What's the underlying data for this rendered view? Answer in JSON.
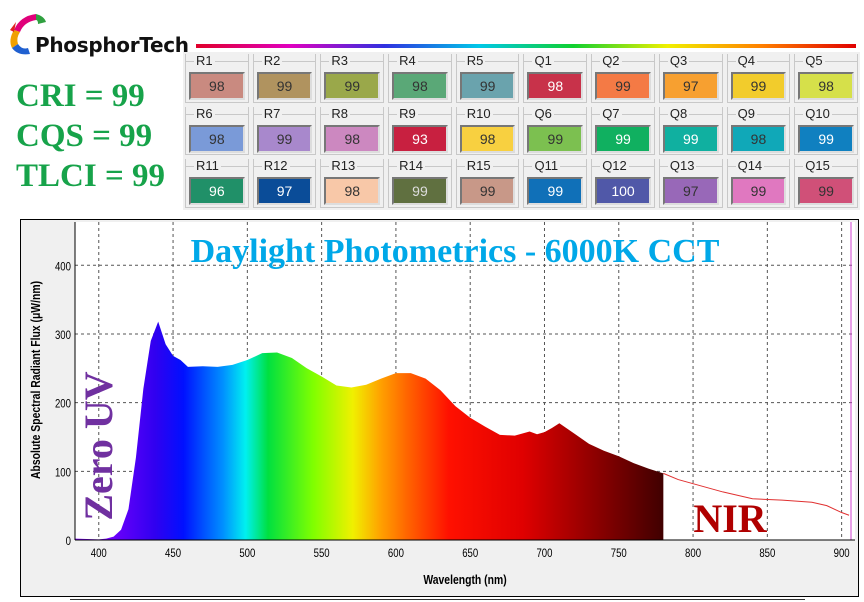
{
  "brand": {
    "name": "PhosphorTech"
  },
  "metrics": [
    {
      "label": "CRI = 99"
    },
    {
      "label": "CQS = 99"
    },
    {
      "label": "TLCI = 99"
    }
  ],
  "swatches": [
    {
      "id": "R1",
      "value": "98",
      "color": "#c98a80",
      "text": "#333"
    },
    {
      "id": "R2",
      "value": "99",
      "color": "#b0935f",
      "text": "#333"
    },
    {
      "id": "R3",
      "value": "99",
      "color": "#9aa84a",
      "text": "#333"
    },
    {
      "id": "R4",
      "value": "98",
      "color": "#5aa877",
      "text": "#333"
    },
    {
      "id": "R5",
      "value": "99",
      "color": "#6aa3ad",
      "text": "#333"
    },
    {
      "id": "Q1",
      "value": "98",
      "color": "#c8324a",
      "text": "#fff"
    },
    {
      "id": "Q2",
      "value": "99",
      "color": "#f47a45",
      "text": "#333"
    },
    {
      "id": "Q3",
      "value": "97",
      "color": "#f7a030",
      "text": "#333"
    },
    {
      "id": "Q4",
      "value": "99",
      "color": "#f2cc2c",
      "text": "#333"
    },
    {
      "id": "Q5",
      "value": "98",
      "color": "#d6e04a",
      "text": "#333"
    },
    {
      "id": "R6",
      "value": "98",
      "color": "#7a9ad8",
      "text": "#333"
    },
    {
      "id": "R7",
      "value": "99",
      "color": "#a888cc",
      "text": "#333"
    },
    {
      "id": "R8",
      "value": "98",
      "color": "#cc88c0",
      "text": "#333"
    },
    {
      "id": "R9",
      "value": "93",
      "color": "#c82040",
      "text": "#fff"
    },
    {
      "id": "R10",
      "value": "98",
      "color": "#f8d040",
      "text": "#333"
    },
    {
      "id": "Q6",
      "value": "99",
      "color": "#7cc050",
      "text": "#333"
    },
    {
      "id": "Q7",
      "value": "99",
      "color": "#10b060",
      "text": "#fff"
    },
    {
      "id": "Q8",
      "value": "99",
      "color": "#10b0a0",
      "text": "#fff"
    },
    {
      "id": "Q9",
      "value": "98",
      "color": "#10a8b8",
      "text": "#333"
    },
    {
      "id": "Q10",
      "value": "99",
      "color": "#1080c0",
      "text": "#fff"
    },
    {
      "id": "R11",
      "value": "96",
      "color": "#209068",
      "text": "#fff"
    },
    {
      "id": "R12",
      "value": "97",
      "color": "#0a4c98",
      "text": "#fff"
    },
    {
      "id": "R13",
      "value": "98",
      "color": "#f8c8a8",
      "text": "#333"
    },
    {
      "id": "R14",
      "value": "99",
      "color": "#607040",
      "text": "#ddd"
    },
    {
      "id": "R15",
      "value": "99",
      "color": "#c89888",
      "text": "#333"
    },
    {
      "id": "Q11",
      "value": "99",
      "color": "#1070b8",
      "text": "#fff"
    },
    {
      "id": "Q12",
      "value": "100",
      "color": "#5058a8",
      "text": "#fff"
    },
    {
      "id": "Q13",
      "value": "97",
      "color": "#9868b8",
      "text": "#333"
    },
    {
      "id": "Q14",
      "value": "99",
      "color": "#e078c0",
      "text": "#333"
    },
    {
      "id": "Q15",
      "value": "99",
      "color": "#d05078",
      "text": "#333"
    }
  ],
  "chart_data": {
    "type": "area",
    "title": "Daylight Photometrics - 6000K CCT",
    "xlabel": "Wavelength (nm)",
    "ylabel": "Absolute Spectral Radiant Flux (μW/nm)",
    "xlim": [
      384,
      909
    ],
    "ylim": [
      0,
      463
    ],
    "xticks": [
      400,
      450,
      500,
      550,
      600,
      650,
      700,
      750,
      800,
      850,
      900
    ],
    "yticks": [
      0,
      100,
      200,
      300,
      400
    ],
    "grid": true,
    "annotations": [
      {
        "text": "Zero UV",
        "color": "#7030a0"
      },
      {
        "text": "NIR",
        "color": "#b00000"
      }
    ],
    "colors": {
      "title": "#00a8e8",
      "nir_line": "#e03030",
      "marker_line": "#d040d0"
    },
    "visible_fill_end_nm": 780,
    "series": [
      {
        "x": [
          384,
          400,
          405,
          410,
          415,
          420,
          425,
          430,
          435,
          440,
          445,
          450,
          455,
          460,
          470,
          480,
          490,
          500,
          510,
          520,
          530,
          540,
          550,
          560,
          570,
          580,
          590,
          600,
          610,
          620,
          630,
          640,
          650,
          660,
          670,
          680,
          690,
          695,
          700,
          705,
          710,
          720,
          730,
          740,
          750,
          760,
          770,
          780,
          790,
          800,
          820,
          840,
          860,
          880,
          890,
          900,
          905
        ],
        "y": [
          2,
          1,
          2,
          5,
          15,
          45,
          120,
          220,
          290,
          318,
          285,
          268,
          262,
          252,
          253,
          252,
          255,
          262,
          272,
          273,
          265,
          250,
          238,
          225,
          222,
          226,
          235,
          243,
          243,
          235,
          218,
          195,
          178,
          165,
          153,
          152,
          158,
          154,
          157,
          163,
          170,
          155,
          140,
          130,
          122,
          112,
          104,
          97,
          88,
          82,
          70,
          60,
          58,
          55,
          50,
          40,
          36
        ]
      }
    ]
  }
}
